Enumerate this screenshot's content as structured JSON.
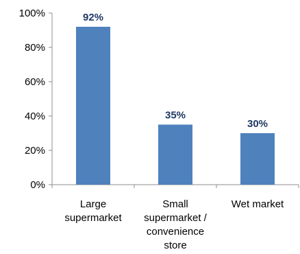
{
  "chart_data": {
    "type": "bar",
    "categories": [
      [
        "Large",
        "supermarket"
      ],
      [
        "Small",
        "supermarket /",
        "convenience",
        "store"
      ],
      [
        "Wet market"
      ]
    ],
    "values": [
      92,
      35,
      30
    ],
    "data_labels": [
      "92%",
      "35%",
      "30%"
    ],
    "ylim": [
      0,
      100
    ],
    "y_ticks": [
      0,
      20,
      40,
      60,
      80,
      100
    ],
    "y_tick_labels": [
      "0%",
      "20%",
      "40%",
      "60%",
      "80%",
      "100%"
    ],
    "grid": false,
    "legend": "none",
    "colors": {
      "bar": "#4f81bd",
      "data_label": "#1f3864",
      "axis": "#8c8c8c"
    }
  }
}
